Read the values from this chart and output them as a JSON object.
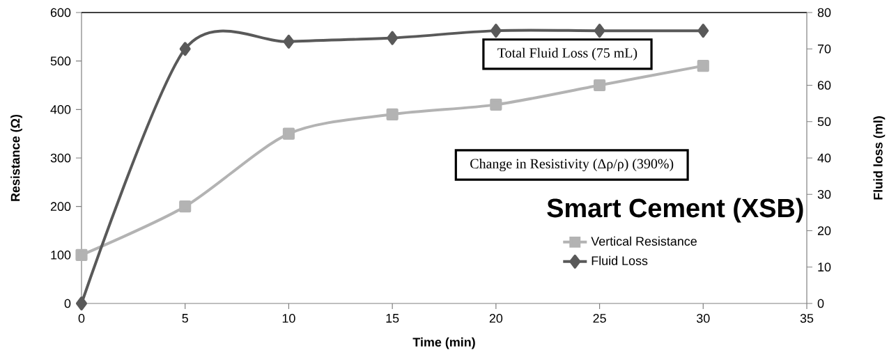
{
  "chart_data": {
    "type": "line",
    "title": "Smart Cement (XSB)",
    "xlabel": "Time (min)",
    "ylabel": "Resistance (Ω)",
    "y2label": "Fluid loss (ml)",
    "x": [
      0,
      5,
      10,
      15,
      20,
      25,
      30
    ],
    "series": [
      {
        "name": "Vertical Resistance",
        "color": "#b3b3b3",
        "marker": "square",
        "values": [
          100,
          200,
          350,
          390,
          410,
          450,
          490
        ]
      },
      {
        "name": "Fluid Loss",
        "color": "#595959",
        "marker": "diamond",
        "axis": "y2",
        "values": [
          0,
          70,
          72,
          73,
          75,
          75,
          75
        ]
      }
    ],
    "annotations": [
      "Total Fluid Loss (75 mL)",
      "Change in Resistivity (Δρ/ρ) (390%)"
    ],
    "xlim": [
      0,
      35
    ],
    "xticks": [
      0,
      5,
      10,
      15,
      20,
      25,
      30,
      35
    ],
    "ylim": [
      0,
      600
    ],
    "yticks": [
      0,
      100,
      200,
      300,
      400,
      500,
      600
    ],
    "y2lim": [
      0,
      80
    ],
    "y2ticks": [
      0,
      10,
      20,
      30,
      40,
      50,
      60,
      70,
      80
    ],
    "grid": false,
    "legend": "bottom right",
    "line_style": "solid"
  }
}
